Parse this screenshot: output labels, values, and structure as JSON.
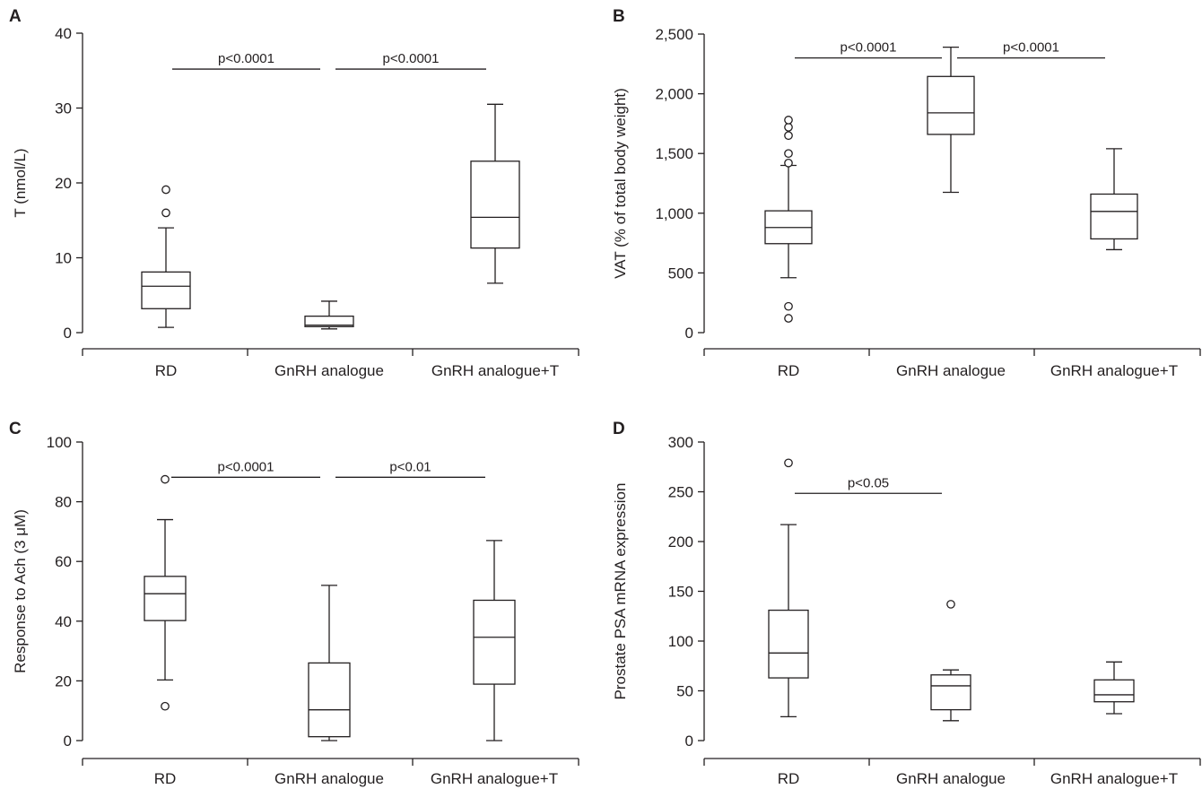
{
  "chart_data": [
    {
      "type": "box",
      "panel": "A",
      "ylabel": "T (nmol/L)",
      "ylim": [
        0,
        40
      ],
      "yticks": [
        0,
        10,
        20,
        30,
        40
      ],
      "ytick_labels": [
        "0",
        "10",
        "20",
        "30",
        "40"
      ],
      "categories": [
        "RD",
        "GnRH analogue",
        "GnRH analogue+T"
      ],
      "boxes": [
        {
          "min": 0.7,
          "q1": 3.2,
          "median": 6.2,
          "q3": 8.1,
          "max": 14.0,
          "outliers": [
            16.0,
            19.1
          ]
        },
        {
          "min": 0.5,
          "q1": 0.8,
          "median": 1.0,
          "q3": 2.2,
          "max": 4.2,
          "outliers": []
        },
        {
          "min": 6.6,
          "q1": 11.3,
          "median": 15.4,
          "q3": 22.9,
          "max": 30.5,
          "outliers": []
        }
      ],
      "comparisons": [
        {
          "from": 0,
          "to": 1,
          "label": "p<0.0001",
          "y": 35.2
        },
        {
          "from": 1,
          "to": 2,
          "label": "p<0.0001",
          "y": 35.2
        }
      ]
    },
    {
      "type": "box",
      "panel": "B",
      "ylabel": "VAT (% of total body weight)",
      "ylim": [
        0,
        2500
      ],
      "yticks": [
        0,
        500,
        1000,
        1500,
        2000,
        2500
      ],
      "ytick_labels": [
        "0",
        "500",
        "1,000",
        "1,500",
        "2,000",
        "2,500"
      ],
      "categories": [
        "RD",
        "GnRH analogue",
        "GnRH analogue+T"
      ],
      "boxes": [
        {
          "min": 460,
          "q1": 745,
          "median": 880,
          "q3": 1020,
          "max": 1400,
          "outliers": [
            120,
            220,
            1420,
            1500,
            1650,
            1720,
            1780
          ]
        },
        {
          "min": 1175,
          "q1": 1660,
          "median": 1840,
          "q3": 2145,
          "max": 2390,
          "outliers": []
        },
        {
          "min": 695,
          "q1": 785,
          "median": 1015,
          "q3": 1160,
          "max": 1540,
          "outliers": []
        }
      ],
      "comparisons": [
        {
          "from": 0,
          "to": 1,
          "label": "p<0.0001",
          "y": 2300
        },
        {
          "from": 1,
          "to": 2,
          "label": "p<0.0001",
          "y": 2300
        }
      ]
    },
    {
      "type": "box",
      "panel": "C",
      "ylabel": "Response to Ach (3 μM)",
      "ylim": [
        0,
        100
      ],
      "yticks": [
        0,
        20,
        40,
        60,
        80,
        100
      ],
      "ytick_labels": [
        "0",
        "20",
        "40",
        "60",
        "80",
        "100"
      ],
      "categories": [
        "RD",
        "GnRH analogue",
        "GnRH analogue+T"
      ],
      "boxes": [
        {
          "min": 20.3,
          "q1": 40.2,
          "median": 49.2,
          "q3": 55.0,
          "max": 74.0,
          "outliers": [
            11.5,
            87.5
          ]
        },
        {
          "min": 0.0,
          "q1": 1.3,
          "median": 10.3,
          "q3": 26.0,
          "max": 52.0,
          "outliers": []
        },
        {
          "min": 0.0,
          "q1": 18.9,
          "median": 34.6,
          "q3": 47.0,
          "max": 67.0,
          "outliers": []
        }
      ],
      "comparisons": [
        {
          "from": 0,
          "to": 1,
          "label": "p<0.0001",
          "y": 88.2
        },
        {
          "from": 1,
          "to": 2,
          "label": "p<0.01",
          "y": 88.2
        }
      ]
    },
    {
      "type": "box",
      "panel": "D",
      "ylabel": "Prostate PSA mRNA expression",
      "ylim": [
        0,
        300
      ],
      "yticks": [
        0,
        50,
        100,
        150,
        200,
        250,
        300
      ],
      "ytick_labels": [
        "0",
        "50",
        "100",
        "150",
        "200",
        "250",
        "300"
      ],
      "categories": [
        "RD",
        "GnRH analogue",
        "GnRH analogue+T"
      ],
      "boxes": [
        {
          "min": 24,
          "q1": 63,
          "median": 88,
          "q3": 131,
          "max": 217,
          "outliers": [
            279
          ]
        },
        {
          "min": 20,
          "q1": 31,
          "median": 55,
          "q3": 66,
          "max": 71,
          "outliers": [
            137
          ]
        },
        {
          "min": 27,
          "q1": 39,
          "median": 46,
          "q3": 61,
          "max": 79,
          "outliers": []
        }
      ],
      "comparisons": [
        {
          "from": 0,
          "to": 1,
          "label": "p<0.05",
          "y": 248.4
        }
      ]
    }
  ]
}
